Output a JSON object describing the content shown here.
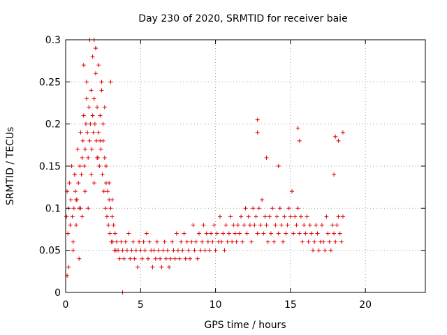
{
  "chart_data": {
    "type": "scatter",
    "title": "Day 230 of 2020, SRMTID for receiver baie",
    "xlabel": "GPS time / hours",
    "ylabel": "SRMTID / TECUs",
    "xlim": [
      0,
      24
    ],
    "ylim": [
      0,
      0.3
    ],
    "xticks": [
      0,
      5,
      10,
      15,
      20
    ],
    "xtick_labels": [
      "0",
      "5",
      "10",
      "15",
      "20"
    ],
    "yticks": [
      0,
      0.05,
      0.1,
      0.15,
      0.2,
      0.25,
      0.3
    ],
    "ytick_labels": [
      "0",
      "0.05",
      "0.1",
      "0.15",
      "0.2",
      "0.25",
      "0.3"
    ],
    "grid": true,
    "marker": "+",
    "color": "#e00000",
    "series": [
      {
        "name": "SRMTID",
        "x": [
          0.05,
          0.1,
          0.15,
          0.2,
          0.25,
          0.3,
          0.35,
          0.4,
          0.45,
          0.5,
          0.55,
          0.6,
          0.65,
          0.7,
          0.75,
          0.8,
          0.85,
          0.9,
          0.95,
          1.0,
          1.05,
          1.1,
          1.15,
          1.2,
          1.25,
          1.3,
          1.35,
          1.4,
          1.45,
          1.5,
          1.55,
          1.6,
          1.65,
          1.7,
          1.75,
          1.8,
          1.85,
          1.9,
          1.95,
          2.0,
          2.05,
          2.1,
          2.15,
          2.2,
          2.25,
          2.3,
          2.35,
          2.4,
          2.45,
          2.5,
          2.55,
          2.6,
          2.65,
          2.7,
          2.75,
          2.8,
          2.85,
          2.9,
          2.95,
          3.0,
          3.05,
          3.1,
          3.15,
          3.2,
          3.25,
          3.3,
          3.35,
          3.4,
          3.5,
          3.6,
          3.7,
          3.8,
          3.9,
          4.0,
          4.1,
          4.2,
          4.3,
          4.4,
          4.5,
          4.6,
          4.7,
          4.8,
          4.9,
          5.0,
          5.1,
          5.2,
          5.3,
          5.4,
          5.5,
          5.6,
          5.7,
          5.8,
          5.9,
          6.0,
          6.1,
          6.2,
          6.3,
          6.4,
          6.5,
          6.6,
          6.7,
          6.8,
          6.9,
          7.0,
          7.1,
          7.2,
          7.3,
          7.4,
          7.5,
          7.6,
          7.7,
          7.8,
          7.9,
          8.0,
          8.1,
          8.2,
          8.3,
          8.4,
          8.5,
          8.6,
          8.7,
          8.8,
          8.9,
          9.0,
          9.1,
          9.2,
          9.3,
          9.4,
          9.5,
          9.6,
          9.7,
          9.8,
          9.9,
          10.0,
          10.1,
          10.2,
          10.3,
          10.4,
          10.5,
          10.6,
          10.7,
          10.8,
          10.9,
          11.0,
          11.1,
          11.2,
          11.3,
          11.4,
          11.5,
          11.6,
          11.7,
          11.8,
          11.9,
          12.0,
          12.1,
          12.2,
          12.3,
          12.4,
          12.5,
          12.6,
          12.7,
          12.8,
          12.9,
          13.0,
          13.1,
          13.2,
          13.3,
          13.4,
          13.5,
          13.6,
          13.7,
          13.8,
          13.9,
          14.0,
          14.1,
          14.2,
          14.3,
          14.4,
          14.5,
          14.6,
          14.7,
          14.8,
          14.9,
          15.0,
          15.1,
          15.2,
          15.3,
          15.4,
          15.5,
          15.6,
          15.7,
          15.8,
          15.9,
          16.0,
          16.1,
          16.2,
          16.3,
          16.4,
          16.5,
          16.6,
          16.7,
          16.8,
          16.9,
          17.0,
          17.1,
          17.2,
          17.3,
          17.4,
          17.5,
          17.6,
          17.7,
          17.8,
          17.9,
          18.0,
          18.1,
          18.2,
          18.3,
          18.4,
          18.5,
          0.1,
          0.3,
          0.5,
          0.7,
          0.9,
          1.1,
          1.3,
          1.5,
          1.7,
          1.9,
          2.1,
          2.3,
          2.5,
          2.7,
          2.9,
          3.1,
          0.2,
          0.6,
          1.0,
          1.4,
          1.8,
          2.2,
          2.6,
          3.0,
          1.2,
          1.6,
          2.0,
          2.4,
          1.9,
          2.0,
          3.8,
          12.8,
          12.8,
          15.5,
          15.6,
          18.0,
          18.2,
          18.5,
          13.4,
          14.2,
          17.9
        ],
        "y": [
          0.09,
          0.12,
          0.07,
          0.1,
          0.13,
          0.08,
          0.11,
          0.15,
          0.09,
          0.06,
          0.1,
          0.14,
          0.12,
          0.08,
          0.11,
          0.17,
          0.13,
          0.1,
          0.15,
          0.19,
          0.14,
          0.16,
          0.18,
          0.21,
          0.15,
          0.17,
          0.2,
          0.23,
          0.19,
          0.16,
          0.22,
          0.18,
          0.2,
          0.24,
          0.17,
          0.21,
          0.19,
          0.23,
          0.2,
          0.26,
          0.18,
          0.22,
          0.16,
          0.19,
          0.15,
          0.21,
          0.17,
          0.24,
          0.14,
          0.18,
          0.12,
          0.16,
          0.1,
          0.13,
          0.09,
          0.12,
          0.08,
          0.11,
          0.07,
          0.1,
          0.06,
          0.09,
          0.06,
          0.08,
          0.05,
          0.07,
          0.05,
          0.06,
          0.05,
          0.04,
          0.06,
          0.05,
          0.04,
          0.06,
          0.05,
          0.07,
          0.04,
          0.05,
          0.06,
          0.04,
          0.05,
          0.03,
          0.06,
          0.05,
          0.04,
          0.06,
          0.05,
          0.07,
          0.04,
          0.06,
          0.05,
          0.03,
          0.05,
          0.04,
          0.06,
          0.05,
          0.04,
          0.03,
          0.05,
          0.06,
          0.04,
          0.05,
          0.03,
          0.04,
          0.06,
          0.05,
          0.04,
          0.07,
          0.05,
          0.04,
          0.06,
          0.05,
          0.07,
          0.04,
          0.06,
          0.05,
          0.04,
          0.06,
          0.08,
          0.05,
          0.06,
          0.04,
          0.07,
          0.05,
          0.06,
          0.08,
          0.05,
          0.07,
          0.06,
          0.05,
          0.07,
          0.06,
          0.08,
          0.05,
          0.07,
          0.06,
          0.09,
          0.06,
          0.07,
          0.05,
          0.08,
          0.06,
          0.07,
          0.09,
          0.06,
          0.08,
          0.07,
          0.06,
          0.08,
          0.07,
          0.09,
          0.06,
          0.08,
          0.1,
          0.07,
          0.09,
          0.08,
          0.06,
          0.1,
          0.08,
          0.09,
          0.07,
          0.1,
          0.08,
          0.11,
          0.07,
          0.09,
          0.08,
          0.06,
          0.09,
          0.07,
          0.1,
          0.06,
          0.08,
          0.09,
          0.07,
          0.1,
          0.08,
          0.06,
          0.09,
          0.07,
          0.08,
          0.1,
          0.09,
          0.12,
          0.07,
          0.09,
          0.08,
          0.1,
          0.07,
          0.09,
          0.06,
          0.08,
          0.07,
          0.09,
          0.06,
          0.08,
          0.07,
          0.05,
          0.06,
          0.08,
          0.07,
          0.05,
          0.06,
          0.08,
          0.06,
          0.05,
          0.09,
          0.07,
          0.06,
          0.05,
          0.08,
          0.07,
          0.06,
          0.08,
          0.09,
          0.07,
          0.06,
          0.09,
          0.02,
          0.08,
          0.05,
          0.11,
          0.04,
          0.09,
          0.12,
          0.1,
          0.14,
          0.13,
          0.16,
          0.18,
          0.2,
          0.15,
          0.13,
          0.11,
          0.03,
          0.14,
          0.1,
          0.25,
          0.28,
          0.27,
          0.22,
          0.25,
          0.27,
          0.3,
          0.29,
          0.25,
          0.3,
          0.29,
          0.0,
          0.205,
          0.19,
          0.195,
          0.18,
          0.185,
          0.18,
          0.19,
          0.16,
          0.15,
          0.14
        ]
      }
    ]
  }
}
